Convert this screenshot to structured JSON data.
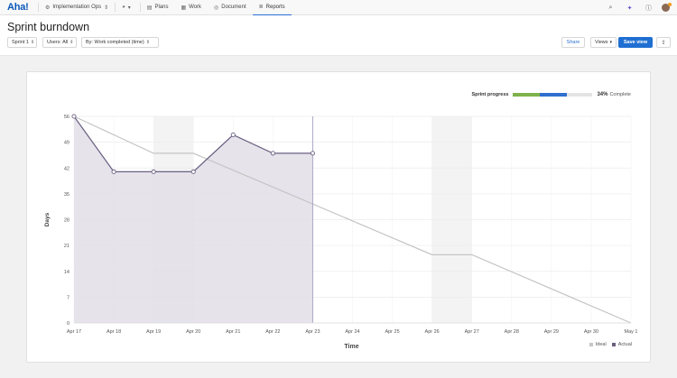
{
  "app": {
    "logo": "Aha!"
  },
  "nav": {
    "workspace": "Implementation Ops",
    "workspace_icon": "workspace-icon",
    "items": [
      {
        "label": "Plans",
        "icon": "plans-icon"
      },
      {
        "label": "Work",
        "icon": "work-icon"
      },
      {
        "label": "Document",
        "icon": "document-icon"
      },
      {
        "label": "Reports",
        "icon": "reports-icon",
        "active": true
      }
    ]
  },
  "header": {
    "title": "Sprint burndown",
    "filters": [
      {
        "label": "Sprint 1"
      },
      {
        "label": "Users: All"
      },
      {
        "label": "By: Work completed (time)"
      }
    ],
    "share_label": "Share",
    "views_label": "Views",
    "save_label": "Save view"
  },
  "progress": {
    "label": "Sprint progress",
    "percent_text": "34%",
    "word": "Complete",
    "segments": [
      {
        "fraction": 0.34,
        "color": "#7fb24a"
      },
      {
        "fraction": 0.34,
        "color": "#2f6fcf"
      }
    ]
  },
  "legend": {
    "ideal": "Ideal",
    "actual": "Actual"
  },
  "colors": {
    "ideal": "#c5c5c5",
    "actual": "#6b5f80",
    "actual_fill": "#e2dee8",
    "weekend": "#f3f3f3",
    "accent": "#1f6fd2"
  },
  "chart_data": {
    "type": "line",
    "xlabel": "Time",
    "ylabel": "Days",
    "categories": [
      "Apr 17",
      "Apr 18",
      "Apr 19",
      "Apr 20",
      "Apr 21",
      "Apr 22",
      "Apr 23",
      "Apr 24",
      "Apr 25",
      "Apr 26",
      "Apr 27",
      "Apr 28",
      "Apr 29",
      "Apr 30",
      "May 1"
    ],
    "yticks": [
      0,
      7,
      14,
      21,
      28,
      35,
      42,
      49,
      56
    ],
    "ylim": [
      0,
      56
    ],
    "weekend_ranges": [
      [
        "Apr 19",
        "Apr 20"
      ],
      [
        "Apr 26",
        "Apr 27"
      ]
    ],
    "today": "Apr 23",
    "series": [
      {
        "name": "Ideal",
        "points": [
          {
            "x": "Apr 17",
            "y": 56
          },
          {
            "x": "Apr 19",
            "y": 46
          },
          {
            "x": "Apr 20",
            "y": 46
          },
          {
            "x": "Apr 26",
            "y": 18.5
          },
          {
            "x": "Apr 27",
            "y": 18.5
          },
          {
            "x": "May 1",
            "y": 0
          }
        ]
      },
      {
        "name": "Actual",
        "points": [
          {
            "x": "Apr 17",
            "y": 56
          },
          {
            "x": "Apr 18",
            "y": 41
          },
          {
            "x": "Apr 19",
            "y": 41
          },
          {
            "x": "Apr 20",
            "y": 41
          },
          {
            "x": "Apr 21",
            "y": 51
          },
          {
            "x": "Apr 22",
            "y": 46
          },
          {
            "x": "Apr 23",
            "y": 46
          }
        ]
      }
    ],
    "grid": true,
    "legend_position": "bottom-right"
  }
}
